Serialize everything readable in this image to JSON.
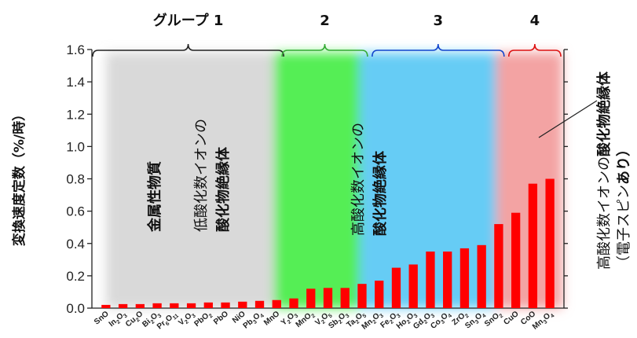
{
  "chart_data": {
    "type": "bar",
    "ylabel": "変換速度定数（%/時）",
    "ylim": [
      0,
      1.6
    ],
    "yticks": [
      "0.0",
      "0.2",
      "0.4",
      "0.6",
      "0.8",
      "1.0",
      "1.2",
      "1.4",
      "1.6"
    ],
    "bar_color": "#ff0000",
    "categories": [
      {
        "parts": [
          [
            "Sn",
            ""
          ],
          [
            "O",
            ""
          ]
        ]
      },
      {
        "parts": [
          [
            "In",
            ""
          ],
          [
            "2",
            "s"
          ],
          [
            "O",
            ""
          ],
          [
            "3",
            "s"
          ]
        ]
      },
      {
        "parts": [
          [
            "Cu",
            ""
          ],
          [
            "2",
            "s"
          ],
          [
            "O",
            ""
          ]
        ]
      },
      {
        "parts": [
          [
            "Bi",
            ""
          ],
          [
            "2",
            "s"
          ],
          [
            "O",
            ""
          ],
          [
            "3",
            "s"
          ]
        ]
      },
      {
        "parts": [
          [
            "Pr",
            ""
          ],
          [
            "6",
            "s"
          ],
          [
            "O",
            ""
          ],
          [
            "11",
            "s"
          ]
        ]
      },
      {
        "parts": [
          [
            "V",
            ""
          ],
          [
            "2",
            "s"
          ],
          [
            "O",
            ""
          ],
          [
            "3",
            "s"
          ]
        ]
      },
      {
        "parts": [
          [
            "PbO",
            ""
          ],
          [
            "2",
            "s"
          ]
        ]
      },
      {
        "parts": [
          [
            "PbO",
            ""
          ]
        ]
      },
      {
        "parts": [
          [
            "NiO",
            ""
          ]
        ]
      },
      {
        "parts": [
          [
            "Pb",
            ""
          ],
          [
            "3",
            "s"
          ],
          [
            "O",
            ""
          ],
          [
            "4",
            "s"
          ]
        ]
      },
      {
        "parts": [
          [
            "MnO",
            ""
          ]
        ]
      },
      {
        "parts": [
          [
            "Y",
            ""
          ],
          [
            "2",
            "s"
          ],
          [
            "O",
            ""
          ],
          [
            "3",
            "s"
          ]
        ]
      },
      {
        "parts": [
          [
            "MnO",
            ""
          ],
          [
            "2",
            "s"
          ]
        ]
      },
      {
        "parts": [
          [
            "V",
            ""
          ],
          [
            "2",
            "s"
          ],
          [
            "O",
            ""
          ],
          [
            "5",
            "s"
          ]
        ]
      },
      {
        "parts": [
          [
            "Sb",
            ""
          ],
          [
            "2",
            "s"
          ],
          [
            "O",
            ""
          ],
          [
            "3",
            "s"
          ]
        ]
      },
      {
        "parts": [
          [
            "Ta",
            ""
          ],
          [
            "2",
            "s"
          ],
          [
            "O",
            ""
          ],
          [
            "5",
            "s"
          ]
        ]
      },
      {
        "parts": [
          [
            "Mn",
            ""
          ],
          [
            "2",
            "s"
          ],
          [
            "O",
            ""
          ],
          [
            "3",
            "s"
          ]
        ]
      },
      {
        "parts": [
          [
            "Fe",
            ""
          ],
          [
            "2",
            "s"
          ],
          [
            "O",
            ""
          ],
          [
            "3",
            "s"
          ]
        ]
      },
      {
        "parts": [
          [
            "Ho",
            ""
          ],
          [
            "2",
            "s"
          ],
          [
            "O",
            ""
          ],
          [
            "3",
            "s"
          ]
        ]
      },
      {
        "parts": [
          [
            "Gd",
            ""
          ],
          [
            "2",
            "s"
          ],
          [
            "O",
            ""
          ],
          [
            "3",
            "s"
          ]
        ]
      },
      {
        "parts": [
          [
            "Co",
            ""
          ],
          [
            "3",
            "s"
          ],
          [
            "O",
            ""
          ],
          [
            "4",
            "s"
          ]
        ]
      },
      {
        "parts": [
          [
            "ZrO",
            ""
          ],
          [
            "2",
            "s"
          ]
        ]
      },
      {
        "parts": [
          [
            "Sn",
            ""
          ],
          [
            "3",
            "s"
          ],
          [
            "O",
            ""
          ],
          [
            "4",
            "s"
          ]
        ]
      },
      {
        "parts": [
          [
            "SnO",
            ""
          ],
          [
            "2",
            "s"
          ]
        ]
      },
      {
        "parts": [
          [
            "CuO",
            ""
          ]
        ]
      },
      {
        "parts": [
          [
            "CoO",
            ""
          ]
        ]
      },
      {
        "parts": [
          [
            "Mn",
            ""
          ],
          [
            "3",
            "s"
          ],
          [
            "O",
            ""
          ],
          [
            "4",
            "s"
          ]
        ]
      }
    ],
    "values": [
      0.02,
      0.025,
      0.025,
      0.03,
      0.03,
      0.03,
      0.035,
      0.035,
      0.04,
      0.045,
      0.05,
      0.06,
      0.12,
      0.125,
      0.125,
      0.15,
      0.17,
      0.25,
      0.27,
      0.35,
      0.35,
      0.37,
      0.39,
      0.52,
      0.59,
      0.77,
      0.8
    ],
    "groups": [
      {
        "label": "グループ 1",
        "from": 0,
        "to": 10,
        "bracket_color": "#222222",
        "region_color": "#d9d9d9"
      },
      {
        "label": "2",
        "from": 10,
        "to": 15,
        "bracket_color": "#33aa33",
        "region_color": "#55ee55"
      },
      {
        "label": "3",
        "from": 15,
        "to": 23,
        "bracket_color": "#1144cc",
        "region_color": "#66ccf5"
      },
      {
        "label": "4",
        "from": 23,
        "to": 26,
        "bracket_color": "#dd1111",
        "region_color": "#f3a3a3"
      }
    ],
    "annotations": {
      "metal": "金属性物質",
      "low_line1": "低酸化数イオンの",
      "low_line2": "酸化物絶縁体",
      "high_line1": "高酸化数イオンの",
      "high_line2": "酸化物絶縁体",
      "spin_line1_a": "高酸化数イオンの",
      "spin_line1_b": "酸化物絶縁体",
      "spin_line2_a": "（電子スピン",
      "spin_line2_b": "あり）"
    }
  }
}
